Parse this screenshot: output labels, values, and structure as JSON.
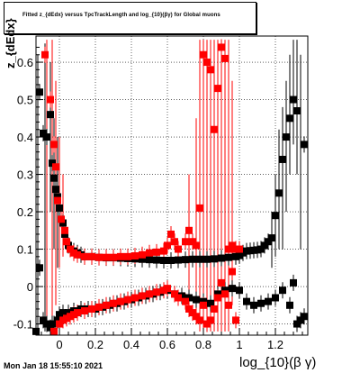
{
  "header": {
    "title": "Fitted z_{dEdx} versus TpcTrackLength and log_{10}(βγ) for Global muons"
  },
  "footer": {
    "timestamp": "Mon Jan 18 15:55:10 2021"
  },
  "chart_data": {
    "type": "scatter",
    "title": "Fitted z_{dEdx} versus TpcTrackLength and log_{10}(βγ) for Global muons",
    "xlabel": "log_{10}(β γ)",
    "ylabel": "z_{dEdx}",
    "xlim": [
      -0.13,
      1.38
    ],
    "ylim": [
      -0.13,
      0.67
    ],
    "xticks": [
      "0",
      "0.2",
      "0.4",
      "0.6",
      "0.8",
      "1",
      "1.2"
    ],
    "yticks": [
      "-0.1",
      "0",
      "0.1",
      "0.2",
      "0.3",
      "0.4",
      "0.5",
      "0.6"
    ],
    "grid": true,
    "series": [
      {
        "color": "#000000",
        "marker": "square",
        "role": "mean",
        "points": [
          [
            -0.11,
            0.52
          ],
          [
            -0.09,
            0.41
          ],
          [
            -0.07,
            0.4
          ],
          [
            -0.05,
            0.46
          ],
          [
            -0.04,
            0.33
          ],
          [
            -0.03,
            0.29
          ],
          [
            -0.02,
            0.26
          ],
          [
            -0.01,
            0.24
          ],
          [
            0.0,
            0.21
          ],
          [
            0.02,
            0.17
          ],
          [
            0.03,
            0.14
          ],
          [
            0.05,
            0.11
          ],
          [
            0.06,
            0.1
          ],
          [
            0.08,
            0.095
          ],
          [
            0.1,
            0.09
          ],
          [
            0.12,
            0.085
          ],
          [
            0.14,
            0.08
          ],
          [
            0.18,
            0.08
          ],
          [
            0.22,
            0.078
          ],
          [
            0.26,
            0.077
          ],
          [
            0.3,
            0.077
          ],
          [
            0.34,
            0.076
          ],
          [
            0.38,
            0.075
          ],
          [
            0.42,
            0.074
          ],
          [
            0.46,
            0.073
          ],
          [
            0.5,
            0.072
          ],
          [
            0.54,
            0.071
          ],
          [
            0.58,
            0.07
          ],
          [
            0.62,
            0.07
          ],
          [
            0.66,
            0.071
          ],
          [
            0.7,
            0.072
          ],
          [
            0.74,
            0.073
          ],
          [
            0.78,
            0.073
          ],
          [
            0.82,
            0.073
          ],
          [
            0.86,
            0.074
          ],
          [
            0.9,
            0.076
          ],
          [
            0.94,
            0.078
          ],
          [
            0.98,
            0.08
          ],
          [
            1.0,
            0.083
          ],
          [
            1.02,
            0.09
          ],
          [
            1.04,
            0.095
          ],
          [
            1.06,
            0.096
          ],
          [
            1.08,
            0.097
          ],
          [
            1.1,
            0.098
          ],
          [
            1.12,
            0.1
          ],
          [
            1.14,
            0.11
          ],
          [
            1.16,
            0.12
          ],
          [
            1.18,
            0.13
          ],
          [
            1.2,
            0.19
          ],
          [
            1.22,
            0.25
          ],
          [
            1.24,
            0.34
          ],
          [
            1.26,
            0.4
          ],
          [
            1.28,
            0.45
          ],
          [
            1.3,
            0.5
          ],
          [
            1.32,
            0.47
          ],
          [
            1.36,
            0.38
          ]
        ]
      },
      {
        "color": "#000000",
        "marker": "square",
        "role": "sigma",
        "points": [
          [
            -0.13,
            -0.12
          ],
          [
            -0.11,
            0.05
          ],
          [
            -0.09,
            -0.09
          ],
          [
            -0.07,
            -0.1
          ],
          [
            -0.05,
            -0.11
          ],
          [
            -0.04,
            -0.1
          ],
          [
            -0.03,
            -0.1
          ],
          [
            -0.01,
            -0.09
          ],
          [
            0.0,
            -0.075
          ],
          [
            0.02,
            -0.07
          ],
          [
            0.05,
            -0.07
          ],
          [
            0.08,
            -0.065
          ],
          [
            0.12,
            -0.06
          ],
          [
            0.16,
            -0.06
          ],
          [
            0.2,
            -0.06
          ],
          [
            0.24,
            -0.055
          ],
          [
            0.28,
            -0.05
          ],
          [
            0.32,
            -0.045
          ],
          [
            0.36,
            -0.04
          ],
          [
            0.4,
            -0.035
          ],
          [
            0.44,
            -0.03
          ],
          [
            0.48,
            -0.025
          ],
          [
            0.52,
            -0.02
          ],
          [
            0.56,
            -0.015
          ],
          [
            0.6,
            -0.01
          ],
          [
            0.64,
            -0.02
          ],
          [
            0.68,
            -0.025
          ],
          [
            0.72,
            -0.03
          ],
          [
            0.76,
            -0.035
          ],
          [
            0.8,
            -0.04
          ],
          [
            0.84,
            -0.045
          ],
          [
            0.88,
            -0.02
          ],
          [
            0.92,
            -0.01
          ],
          [
            0.96,
            -0.005
          ],
          [
            1.0,
            -0.01
          ],
          [
            1.04,
            -0.04
          ],
          [
            1.08,
            -0.05
          ],
          [
            1.12,
            -0.045
          ],
          [
            1.16,
            -0.04
          ],
          [
            1.2,
            -0.03
          ],
          [
            1.24,
            -0.01
          ],
          [
            1.28,
            -0.05
          ],
          [
            1.3,
            0.01
          ],
          [
            1.32,
            -0.1
          ],
          [
            1.34,
            -0.09
          ],
          [
            1.36,
            -0.08
          ]
        ]
      },
      {
        "color": "#ff0000",
        "marker": "square",
        "role": "mean",
        "points": [
          [
            -0.08,
            0.62
          ],
          [
            -0.05,
            0.5
          ],
          [
            -0.03,
            0.38
          ],
          [
            -0.02,
            0.32
          ],
          [
            -0.01,
            0.23
          ],
          [
            0.01,
            0.18
          ],
          [
            0.03,
            0.15
          ],
          [
            0.04,
            0.12
          ],
          [
            0.06,
            0.1
          ],
          [
            0.08,
            0.09
          ],
          [
            0.1,
            0.085
          ],
          [
            0.14,
            0.08
          ],
          [
            0.18,
            0.08
          ],
          [
            0.22,
            0.078
          ],
          [
            0.26,
            0.078
          ],
          [
            0.3,
            0.078
          ],
          [
            0.34,
            0.08
          ],
          [
            0.38,
            0.08
          ],
          [
            0.42,
            0.082
          ],
          [
            0.46,
            0.085
          ],
          [
            0.5,
            0.09
          ],
          [
            0.54,
            0.092
          ],
          [
            0.58,
            0.095
          ],
          [
            0.6,
            0.11
          ],
          [
            0.62,
            0.14
          ],
          [
            0.64,
            0.12
          ],
          [
            0.66,
            0.1
          ],
          [
            0.7,
            0.12
          ],
          [
            0.72,
            0.15
          ],
          [
            0.74,
            0.12
          ],
          [
            0.76,
            0.11
          ],
          [
            0.78,
            0.21
          ],
          [
            0.8,
            0.62
          ],
          [
            0.82,
            0.6
          ],
          [
            0.84,
            0.58
          ],
          [
            0.86,
            0.42
          ],
          [
            0.88,
            0.53
          ],
          [
            0.9,
            0.64
          ],
          [
            0.92,
            0.61
          ],
          [
            0.94,
            0.1
          ],
          [
            0.96,
            0.11
          ],
          [
            0.98,
            0.1
          ],
          [
            1.0,
            0.1
          ]
        ]
      },
      {
        "color": "#ff0000",
        "marker": "square",
        "role": "sigma",
        "points": [
          [
            -0.03,
            -0.12
          ],
          [
            0.0,
            -0.1
          ],
          [
            0.02,
            -0.09
          ],
          [
            0.04,
            -0.085
          ],
          [
            0.06,
            -0.08
          ],
          [
            0.08,
            -0.075
          ],
          [
            0.1,
            -0.07
          ],
          [
            0.14,
            -0.065
          ],
          [
            0.18,
            -0.06
          ],
          [
            0.22,
            -0.055
          ],
          [
            0.26,
            -0.05
          ],
          [
            0.3,
            -0.045
          ],
          [
            0.34,
            -0.04
          ],
          [
            0.38,
            -0.035
          ],
          [
            0.42,
            -0.03
          ],
          [
            0.46,
            -0.025
          ],
          [
            0.5,
            -0.02
          ],
          [
            0.54,
            -0.015
          ],
          [
            0.58,
            -0.01
          ],
          [
            0.6,
            -0.005
          ],
          [
            0.64,
            -0.02
          ],
          [
            0.66,
            -0.03
          ],
          [
            0.7,
            -0.04
          ],
          [
            0.72,
            -0.06
          ],
          [
            0.74,
            -0.07
          ],
          [
            0.76,
            -0.08
          ],
          [
            0.78,
            -0.09
          ],
          [
            0.8,
            -0.05
          ],
          [
            0.82,
            -0.1
          ],
          [
            0.84,
            -0.09
          ],
          [
            0.86,
            -0.06
          ],
          [
            0.88,
            -0.03
          ],
          [
            0.9,
            0.01
          ],
          [
            0.92,
            -0.02
          ],
          [
            0.94,
            -0.05
          ],
          [
            0.96,
            0.04
          ],
          [
            0.98,
            -0.09
          ]
        ]
      }
    ],
    "error_bars": [
      [
        -0.12,
        0.62,
        -0.12,
        "#000000"
      ],
      [
        -0.08,
        0.65,
        -0.12,
        "#000000"
      ],
      [
        -0.05,
        0.6,
        0.2,
        "#000000"
      ],
      [
        -0.03,
        0.45,
        0.1,
        "#000000"
      ],
      [
        -0.01,
        0.4,
        0.05,
        "#000000"
      ],
      [
        1.18,
        0.2,
        0.05,
        "#000000"
      ],
      [
        1.2,
        0.3,
        0.08,
        "#000000"
      ],
      [
        1.22,
        0.42,
        0.1,
        "#000000"
      ],
      [
        1.24,
        0.48,
        0.1,
        "#000000"
      ],
      [
        1.26,
        0.55,
        0.2,
        "#000000"
      ],
      [
        1.28,
        0.62,
        0.3,
        "#000000"
      ],
      [
        1.3,
        0.66,
        0.38,
        "#000000"
      ],
      [
        1.32,
        0.66,
        0.3,
        "#000000"
      ],
      [
        1.34,
        0.62,
        0.1,
        "#000000"
      ],
      [
        -0.07,
        0.66,
        -0.12,
        "#ff0000"
      ],
      [
        -0.04,
        0.66,
        -0.12,
        "#ff0000"
      ],
      [
        -0.02,
        0.55,
        -0.05,
        "#ff0000"
      ],
      [
        0.0,
        0.4,
        0.05,
        "#ff0000"
      ],
      [
        0.02,
        0.3,
        0.08,
        "#ff0000"
      ],
      [
        0.72,
        0.3,
        -0.05,
        "#ff0000"
      ],
      [
        0.76,
        0.45,
        -0.1,
        "#ff0000"
      ],
      [
        0.78,
        0.66,
        -0.12,
        "#ff0000"
      ],
      [
        0.8,
        0.66,
        -0.12,
        "#ff0000"
      ],
      [
        0.82,
        0.66,
        -0.12,
        "#ff0000"
      ],
      [
        0.84,
        0.66,
        -0.12,
        "#ff0000"
      ],
      [
        0.86,
        0.66,
        -0.12,
        "#ff0000"
      ],
      [
        0.88,
        0.66,
        -0.12,
        "#ff0000"
      ],
      [
        0.9,
        0.66,
        -0.12,
        "#ff0000"
      ],
      [
        0.92,
        0.66,
        -0.12,
        "#ff0000"
      ],
      [
        0.94,
        0.66,
        -0.12,
        "#ff0000"
      ],
      [
        0.96,
        0.55,
        -0.05,
        "#ff0000"
      ]
    ]
  }
}
